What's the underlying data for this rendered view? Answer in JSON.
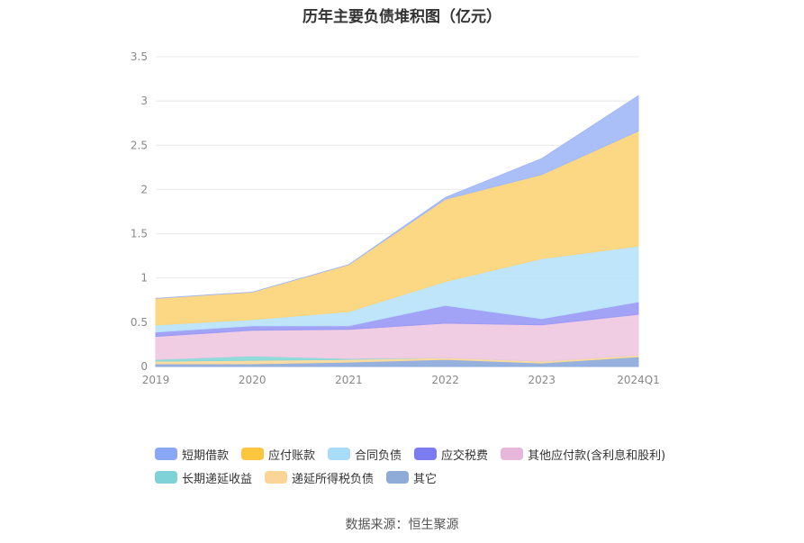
{
  "title": "历年主要负债堆积图（亿元）",
  "source": "数据来源：恒生聚源",
  "chart_data": {
    "type": "area",
    "stacked": true,
    "categories": [
      "2019",
      "2020",
      "2021",
      "2022",
      "2023",
      "2024Q1"
    ],
    "ylim": [
      0,
      3.5
    ],
    "yticks": [
      "0",
      "0.5",
      "1",
      "1.5",
      "2",
      "2.5",
      "3",
      "3.5"
    ],
    "grid": true,
    "legend_position": "bottom",
    "series": [
      {
        "name": "其它",
        "color": "#8eaadb",
        "values": [
          0.03,
          0.03,
          0.05,
          0.08,
          0.04,
          0.11
        ]
      },
      {
        "name": "递延所得税负债",
        "color": "#fcd99a",
        "values": [
          0.03,
          0.04,
          0.03,
          0.02,
          0.02,
          0.02
        ]
      },
      {
        "name": "长期递延收益",
        "color": "#88d8d8",
        "values": [
          0.02,
          0.05,
          0.01,
          0.0,
          0.0,
          0.0
        ]
      },
      {
        "name": "其他应付款(含利息和股利)",
        "color": "#efc9e1",
        "values": [
          0.26,
          0.29,
          0.33,
          0.39,
          0.41,
          0.46
        ]
      },
      {
        "name": "应交税费",
        "color": "#9a9af5",
        "values": [
          0.05,
          0.05,
          0.04,
          0.2,
          0.07,
          0.14
        ]
      },
      {
        "name": "合同负债",
        "color": "#b9e3fa",
        "values": [
          0.08,
          0.07,
          0.16,
          0.27,
          0.68,
          0.63
        ]
      },
      {
        "name": "应付账款",
        "color": "#fdd57a",
        "values": [
          0.3,
          0.31,
          0.53,
          0.93,
          0.95,
          1.3
        ]
      },
      {
        "name": "短期借款",
        "color": "#a3b9f7",
        "values": [
          0.0,
          0.0,
          0.0,
          0.02,
          0.18,
          0.4
        ]
      }
    ]
  },
  "legend": [
    {
      "label": "短期借款",
      "color": "#8aa7f5"
    },
    {
      "label": "应付账款",
      "color": "#fcc73f"
    },
    {
      "label": "合同负债",
      "color": "#a9dcf7"
    },
    {
      "label": "应交税费",
      "color": "#7c7cf0"
    },
    {
      "label": "其他应付款(含利息和股利)",
      "color": "#e6b7d8"
    },
    {
      "label": "长期递延收益",
      "color": "#7fd3d6"
    },
    {
      "label": "递延所得税负债",
      "color": "#fbd596"
    },
    {
      "label": "其它",
      "color": "#8fabd8"
    }
  ]
}
